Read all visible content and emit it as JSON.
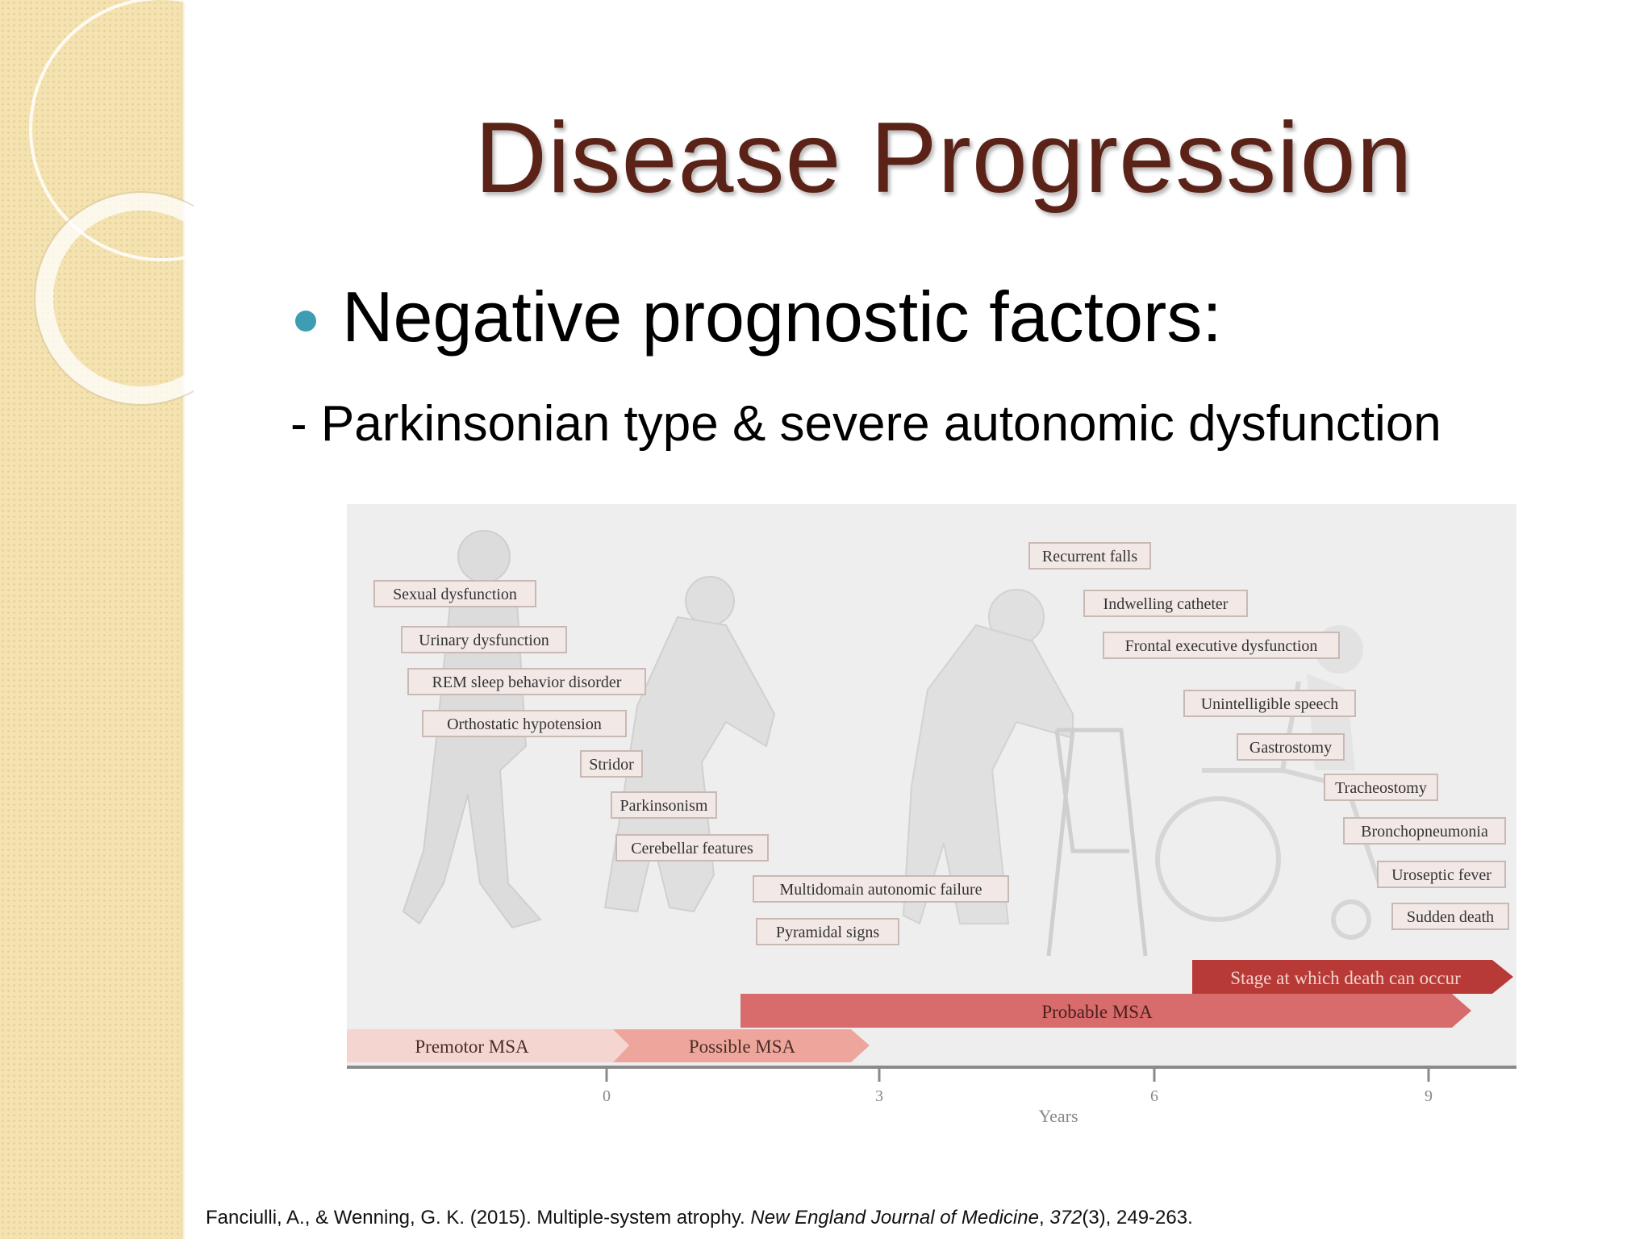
{
  "slide": {
    "title": "Disease Progression",
    "bullet": "Negative prognostic factors:",
    "subpoint_dash": "-",
    "subpoint": "Parkinsonian type & severe autonomic  dysfunction",
    "citation": {
      "authors": "Fanciulli, A., & Wenning, G. K. (2015). Multiple-system atrophy. ",
      "journal": "New England Journal of Medicine",
      "sep": ", ",
      "volume": "372",
      "rest": "(3), 249-263."
    }
  },
  "colors": {
    "title": "#5b2218",
    "bullet": "#3e9cb3",
    "sidebar": "#f4e3b1",
    "figure_bg": "#efeeee",
    "label_bg": "#f2e9e7",
    "label_border": "#c8b9b5",
    "premotor": "#f4d5d0",
    "possible": "#eea69c",
    "probable": "#d86b6b",
    "death_stage": "#b83a36"
  },
  "figure": {
    "labels": [
      "Sexual dysfunction",
      "Urinary dysfunction",
      "REM sleep behavior disorder",
      "Orthostatic hypotension",
      "Stridor",
      "Parkinsonism",
      "Cerebellar features",
      "Multidomain autonomic failure",
      "Pyramidal signs",
      "Recurrent falls",
      "Indwelling catheter",
      "Frontal executive dysfunction",
      "Unintelligible speech",
      "Gastrostomy",
      "Tracheostomy",
      "Bronchopneumonia",
      "Uroseptic fever",
      "Sudden death"
    ],
    "stages": {
      "premotor": "Premotor MSA",
      "possible": "Possible MSA",
      "probable": "Probable MSA",
      "death": "Stage at which death can occur"
    },
    "axis": {
      "ticks": [
        "0",
        "3",
        "6",
        "9"
      ],
      "label": "Years"
    }
  }
}
